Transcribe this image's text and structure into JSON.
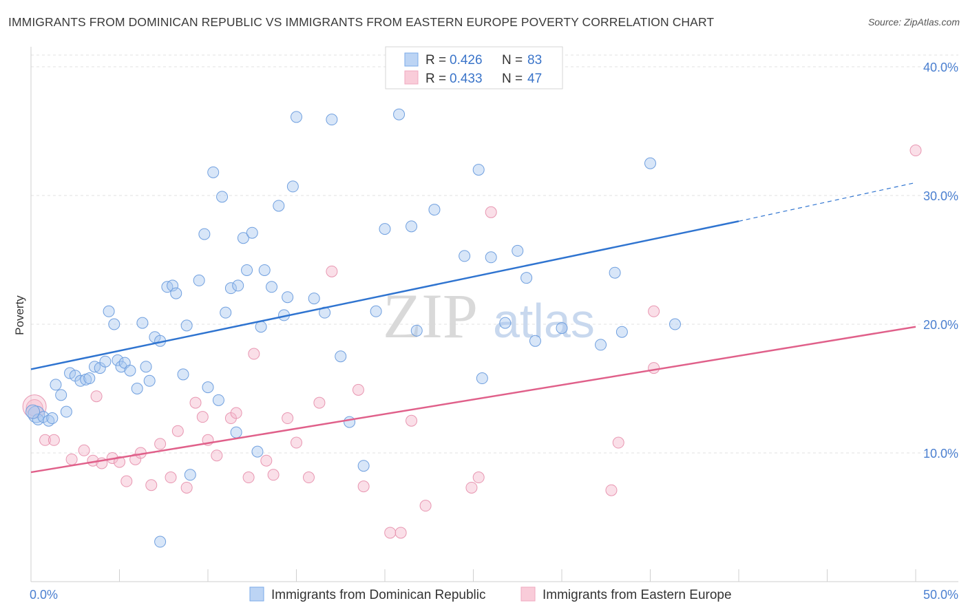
{
  "title": "IMMIGRANTS FROM DOMINICAN REPUBLIC VS IMMIGRANTS FROM EASTERN EUROPE POVERTY CORRELATION CHART",
  "source": "Source: ZipAtlas.com",
  "watermark": {
    "zip": "ZIP",
    "atlas": "atlas"
  },
  "chart_data": {
    "type": "scatter",
    "title": "IMMIGRANTS FROM DOMINICAN REPUBLIC VS IMMIGRANTS FROM EASTERN EUROPE POVERTY CORRELATION CHART",
    "xlabel": "",
    "ylabel": "Poverty",
    "xlim": [
      0,
      50
    ],
    "ylim": [
      0,
      40
    ],
    "x_tick_labels": [
      "0.0%",
      "50.0%"
    ],
    "y_ticks": [
      10,
      20,
      30,
      40
    ],
    "y_tick_labels": [
      "10.0%",
      "20.0%",
      "30.0%",
      "40.0%"
    ],
    "grid": true,
    "legend_position": "top-center",
    "series": [
      {
        "name": "Immigrants from Dominican Republic",
        "color": "#7aaae8",
        "line_color": "#2f74d0",
        "legend_r_label": "R =",
        "legend_r": "0.426",
        "legend_n_label": "N =",
        "legend_n": "83",
        "trend": {
          "x0": 0,
          "y0": 16.5,
          "x1": 40,
          "y1": 28.0,
          "dashed_to_x": 50,
          "dashed_to_y": 31.0
        },
        "points": [
          [
            0.3,
            13.0
          ],
          [
            0.4,
            12.6
          ],
          [
            0.7,
            12.8
          ],
          [
            1.0,
            12.5
          ],
          [
            1.2,
            12.7
          ],
          [
            1.4,
            15.3
          ],
          [
            1.7,
            14.5
          ],
          [
            2.0,
            13.2
          ],
          [
            2.2,
            16.2
          ],
          [
            2.5,
            16.0
          ],
          [
            2.8,
            15.6
          ],
          [
            3.1,
            15.7
          ],
          [
            3.3,
            15.8
          ],
          [
            3.6,
            16.7
          ],
          [
            3.9,
            16.6
          ],
          [
            4.2,
            17.1
          ],
          [
            4.4,
            21.0
          ],
          [
            4.7,
            20.0
          ],
          [
            4.9,
            17.2
          ],
          [
            5.1,
            16.7
          ],
          [
            5.3,
            17.0
          ],
          [
            5.6,
            16.4
          ],
          [
            6.0,
            15.0
          ],
          [
            6.3,
            20.1
          ],
          [
            6.5,
            16.7
          ],
          [
            6.7,
            15.6
          ],
          [
            7.0,
            19.0
          ],
          [
            7.3,
            18.7
          ],
          [
            7.7,
            22.9
          ],
          [
            8.0,
            23.0
          ],
          [
            8.2,
            22.4
          ],
          [
            8.6,
            16.1
          ],
          [
            8.8,
            19.9
          ],
          [
            9.0,
            8.3
          ],
          [
            9.5,
            23.4
          ],
          [
            9.8,
            27.0
          ],
          [
            10.0,
            15.1
          ],
          [
            10.3,
            31.8
          ],
          [
            10.6,
            14.1
          ],
          [
            10.8,
            29.9
          ],
          [
            11.0,
            20.9
          ],
          [
            11.3,
            22.8
          ],
          [
            11.6,
            11.6
          ],
          [
            11.7,
            23.0
          ],
          [
            12.0,
            26.7
          ],
          [
            12.2,
            24.2
          ],
          [
            12.5,
            27.1
          ],
          [
            12.8,
            10.1
          ],
          [
            13.0,
            19.8
          ],
          [
            13.2,
            24.2
          ],
          [
            13.6,
            22.9
          ],
          [
            14.0,
            29.2
          ],
          [
            14.3,
            20.7
          ],
          [
            14.5,
            22.1
          ],
          [
            14.8,
            30.7
          ],
          [
            15.0,
            36.1
          ],
          [
            16.0,
            22.0
          ],
          [
            16.6,
            20.9
          ],
          [
            17.0,
            35.9
          ],
          [
            17.5,
            17.5
          ],
          [
            18.0,
            12.4
          ],
          [
            18.8,
            9.0
          ],
          [
            19.5,
            21.0
          ],
          [
            20.0,
            27.4
          ],
          [
            20.8,
            36.3
          ],
          [
            21.5,
            27.6
          ],
          [
            21.8,
            19.5
          ],
          [
            22.8,
            28.9
          ],
          [
            24.5,
            25.3
          ],
          [
            25.3,
            32.0
          ],
          [
            25.5,
            15.8
          ],
          [
            26.0,
            25.2
          ],
          [
            26.8,
            20.1
          ],
          [
            27.5,
            25.7
          ],
          [
            28.0,
            23.6
          ],
          [
            28.5,
            18.7
          ],
          [
            30.0,
            19.7
          ],
          [
            32.2,
            18.4
          ],
          [
            33.0,
            24.0
          ],
          [
            33.4,
            19.4
          ],
          [
            35.0,
            32.5
          ],
          [
            36.4,
            20.0
          ],
          [
            7.3,
            3.1
          ]
        ]
      },
      {
        "name": "Immigrants from Eastern Europe",
        "color": "#f0a7bf",
        "line_color": "#e0608a",
        "legend_r_label": "R =",
        "legend_r": "0.433",
        "legend_n_label": "N =",
        "legend_n": "47",
        "trend": {
          "x0": 0,
          "y0": 8.5,
          "x1": 50,
          "y1": 19.8
        },
        "points": [
          [
            0.2,
            13.5
          ],
          [
            0.8,
            11.0
          ],
          [
            1.3,
            11.0
          ],
          [
            2.3,
            9.5
          ],
          [
            3.0,
            10.2
          ],
          [
            3.5,
            9.4
          ],
          [
            3.7,
            14.4
          ],
          [
            4.0,
            9.2
          ],
          [
            4.6,
            9.6
          ],
          [
            5.0,
            9.3
          ],
          [
            5.4,
            7.8
          ],
          [
            5.9,
            9.5
          ],
          [
            6.2,
            10.0
          ],
          [
            6.8,
            7.5
          ],
          [
            7.3,
            10.7
          ],
          [
            7.9,
            8.1
          ],
          [
            8.3,
            11.7
          ],
          [
            8.8,
            7.3
          ],
          [
            9.3,
            13.9
          ],
          [
            9.7,
            12.8
          ],
          [
            10.0,
            11.0
          ],
          [
            10.5,
            9.8
          ],
          [
            11.3,
            12.7
          ],
          [
            11.6,
            13.1
          ],
          [
            12.3,
            8.1
          ],
          [
            12.6,
            17.7
          ],
          [
            13.3,
            9.4
          ],
          [
            13.7,
            8.3
          ],
          [
            14.5,
            12.7
          ],
          [
            15.0,
            10.8
          ],
          [
            15.7,
            8.1
          ],
          [
            16.3,
            13.9
          ],
          [
            17.0,
            24.1
          ],
          [
            18.5,
            14.9
          ],
          [
            18.8,
            7.4
          ],
          [
            20.3,
            3.8
          ],
          [
            20.9,
            3.8
          ],
          [
            21.5,
            12.5
          ],
          [
            22.3,
            5.9
          ],
          [
            24.9,
            7.3
          ],
          [
            25.3,
            8.1
          ],
          [
            26.0,
            28.7
          ],
          [
            32.8,
            7.1
          ],
          [
            33.2,
            10.8
          ],
          [
            35.2,
            21.0
          ],
          [
            35.2,
            16.6
          ],
          [
            50.0,
            33.5
          ]
        ]
      }
    ]
  }
}
